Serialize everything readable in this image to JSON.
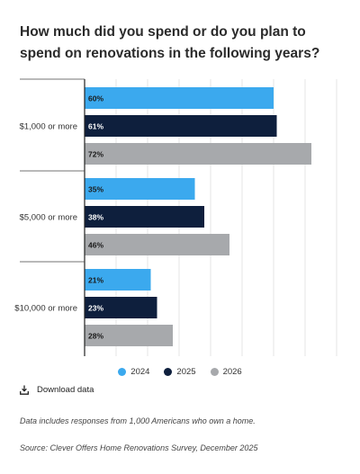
{
  "title": "How much did you spend or do you plan to spend on renovations in the following years?",
  "download_label": "Download data",
  "note": "Data includes responses from 1,000 Americans who own a home.",
  "source": "Source: Clever Offers Home Renovations Survey, December 2025",
  "icons": {
    "download": "download-icon"
  },
  "chart_data": {
    "type": "bar",
    "orientation": "horizontal",
    "categories": [
      "$1,000 or more",
      "$5,000 or more",
      "$10,000 or more"
    ],
    "series": [
      {
        "name": "2024",
        "color": "#3ba9ee",
        "values": [
          60,
          35,
          21
        ],
        "labels": [
          "60%",
          "35%",
          "21%"
        ]
      },
      {
        "name": "2025",
        "color": "#0e1f3d",
        "values": [
          61,
          38,
          23
        ],
        "labels": [
          "61%",
          "38%",
          "23%"
        ]
      },
      {
        "name": "2026",
        "color": "#a7a9ac",
        "values": [
          72,
          46,
          28
        ],
        "labels": [
          "72%",
          "46%",
          "28%"
        ]
      }
    ],
    "xlim": [
      0,
      80
    ],
    "grid": true,
    "legend_position": "bottom"
  }
}
